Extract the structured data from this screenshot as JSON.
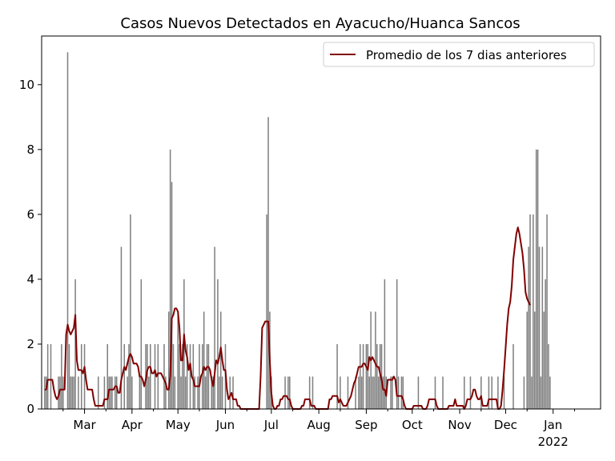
{
  "chart_data": {
    "type": "bar",
    "title": "Casos Nuevos Detectados en Ayacucho/Huanca Sancos",
    "xlabel": "",
    "ylabel": "",
    "ylim": [
      0,
      11.5
    ],
    "x_range": [
      "2021-02-01",
      "2022-02-01"
    ],
    "y_ticks": [
      "0",
      "2",
      "4",
      "6",
      "8",
      "10"
    ],
    "x_ticks": [
      {
        "date": "2021-03-01",
        "label": "Mar"
      },
      {
        "date": "2021-04-01",
        "label": "Apr"
      },
      {
        "date": "2021-05-01",
        "label": "May"
      },
      {
        "date": "2021-06-01",
        "label": "Jun"
      },
      {
        "date": "2021-07-01",
        "label": "Jul"
      },
      {
        "date": "2021-08-01",
        "label": "Aug"
      },
      {
        "date": "2021-09-01",
        "label": "Sep"
      },
      {
        "date": "2021-10-01",
        "label": "Oct"
      },
      {
        "date": "2021-11-01",
        "label": "Nov"
      },
      {
        "date": "2021-12-01",
        "label": "Dec"
      },
      {
        "date": "2022-01-01",
        "label": "Jan",
        "sublabel": "2022"
      }
    ],
    "bar_color": "#808080",
    "line_color": "#800000",
    "legend": {
      "placement": "top-right",
      "entries": [
        "Promedio de los 7 dias anteriores"
      ]
    },
    "series": [
      {
        "kind": "bar",
        "start_date": "2021-02-03",
        "values": [
          1,
          1,
          2,
          0,
          2,
          0,
          0,
          0,
          0,
          1,
          1,
          2,
          1,
          0,
          0,
          11,
          2,
          1,
          1,
          1,
          4,
          0,
          1,
          0,
          2,
          0,
          2,
          0,
          0,
          0,
          0,
          0,
          0,
          0,
          0,
          1,
          0,
          0,
          0,
          1,
          0,
          2,
          1,
          1,
          1,
          0,
          1,
          1,
          0,
          0,
          5,
          0,
          2,
          0,
          1,
          2,
          6,
          1,
          0,
          0,
          0,
          0,
          1,
          4,
          0,
          0,
          2,
          2,
          1,
          2,
          0,
          0,
          2,
          0,
          2,
          0,
          0,
          0,
          2,
          1,
          0,
          3,
          8,
          7,
          2,
          1,
          0,
          3,
          2,
          1,
          2,
          4,
          1,
          2,
          0,
          2,
          0,
          2,
          1,
          0,
          1,
          2,
          0,
          2,
          3,
          1,
          2,
          2,
          0,
          1,
          1,
          5,
          0,
          4,
          1,
          3,
          1,
          0,
          2,
          0,
          0,
          1,
          0,
          1,
          0,
          0,
          0,
          0,
          0,
          0,
          0,
          0,
          0,
          0,
          0,
          0,
          0,
          0,
          0,
          0,
          0,
          0,
          0,
          0,
          0,
          6,
          9,
          3,
          1,
          0,
          0,
          0,
          0,
          0,
          0,
          0,
          0,
          1,
          0,
          1,
          1,
          0,
          0,
          0,
          0,
          0,
          0,
          0,
          0,
          0,
          0,
          0,
          0,
          1,
          0,
          1,
          0,
          0,
          0,
          0,
          0,
          0,
          0,
          0,
          0,
          0,
          0,
          0,
          0,
          0,
          0,
          2,
          0,
          1,
          0,
          0,
          0,
          0,
          1,
          0,
          0,
          0,
          0,
          1,
          0,
          1,
          2,
          1,
          2,
          0,
          2,
          2,
          1,
          3,
          1,
          1,
          3,
          2,
          1,
          2,
          2,
          1,
          4,
          1,
          0,
          0,
          1,
          1,
          0,
          0,
          4,
          1,
          0,
          1,
          1,
          0,
          0,
          0,
          0,
          0,
          0,
          0,
          0,
          0,
          1,
          0,
          0,
          0,
          0,
          0,
          0,
          0,
          0,
          0,
          0,
          1,
          0,
          0,
          0,
          0,
          1,
          0,
          0,
          0,
          0,
          0,
          0,
          0,
          0,
          0,
          0,
          0,
          0,
          0,
          1,
          0,
          0,
          0,
          1,
          0,
          0,
          0,
          0,
          0,
          0,
          1,
          0,
          0,
          0,
          0,
          1,
          0,
          1,
          0,
          0,
          0,
          1,
          0,
          0,
          0,
          1,
          0,
          0,
          0,
          0,
          0,
          2,
          0,
          0,
          0,
          0,
          0,
          0,
          1,
          0,
          3,
          5,
          6,
          1,
          6,
          3,
          8,
          8,
          5,
          1,
          5,
          3,
          4,
          6,
          2,
          1
        ],
        "line_values": [
          0.6,
          0.6,
          0.9,
          0.9,
          0.9,
          0.9,
          0.6,
          0.4,
          0.3,
          0.4,
          0.6,
          0.6,
          0.6,
          0.6,
          2.3,
          2.6,
          2.4,
          2.3,
          2.4,
          2.5,
          2.9,
          1.5,
          1.2,
          1.2,
          1.2,
          1.1,
          1.3,
          0.9,
          0.6,
          0.6,
          0.6,
          0.6,
          0.3,
          0.1,
          0.1,
          0.1,
          0.1,
          0.1,
          0.1,
          0.3,
          0.3,
          0.3,
          0.6,
          0.6,
          0.6,
          0.6,
          0.7,
          0.7,
          0.5,
          0.5,
          0.9,
          1.1,
          1.3,
          1.2,
          1.4,
          1.6,
          1.7,
          1.6,
          1.4,
          1.4,
          1.4,
          1.3,
          1.0,
          1.0,
          0.9,
          0.7,
          0.9,
          1.2,
          1.3,
          1.3,
          1.1,
          1.1,
          1.2,
          1.0,
          1.1,
          1.1,
          1.1,
          1.0,
          0.9,
          0.8,
          0.6,
          0.6,
          1.0,
          2.8,
          2.9,
          3.1,
          3.1,
          3.0,
          2.5,
          1.5,
          1.5,
          2.3,
          1.8,
          1.6,
          1.2,
          1.4,
          1.0,
          0.9,
          0.7,
          0.7,
          0.7,
          0.7,
          1.0,
          1.1,
          1.3,
          1.2,
          1.3,
          1.3,
          1.2,
          0.9,
          0.7,
          1.1,
          1.5,
          1.4,
          1.6,
          1.9,
          1.5,
          1.2,
          1.2,
          0.6,
          0.3,
          0.4,
          0.5,
          0.3,
          0.3,
          0.3,
          0.1,
          0.1,
          0.0,
          0.0,
          0.0,
          0.0,
          0.0,
          0.0,
          0.0,
          0.0,
          0.0,
          0.0,
          0.0,
          0.0,
          0.0,
          1.0,
          2.5,
          2.6,
          2.7,
          2.7,
          2.7,
          1.5,
          0.5,
          0.1,
          0.0,
          0.0,
          0.1,
          0.1,
          0.3,
          0.3,
          0.4,
          0.4,
          0.4,
          0.3,
          0.3,
          0.1,
          0.0,
          0.0,
          0.0,
          0.0,
          0.0,
          0.0,
          0.1,
          0.1,
          0.3,
          0.3,
          0.3,
          0.3,
          0.1,
          0.1,
          0.1,
          0.0,
          0.0,
          0.0,
          0.0,
          0.0,
          0.0,
          0.0,
          0.0,
          0.0,
          0.3,
          0.3,
          0.4,
          0.4,
          0.4,
          0.4,
          0.2,
          0.3,
          0.2,
          0.1,
          0.1,
          0.1,
          0.2,
          0.3,
          0.4,
          0.6,
          0.8,
          0.9,
          1.1,
          1.3,
          1.3,
          1.3,
          1.4,
          1.4,
          1.3,
          1.2,
          1.6,
          1.5,
          1.6,
          1.5,
          1.4,
          1.3,
          1.3,
          1.1,
          0.9,
          0.6,
          0.6,
          0.4,
          0.9,
          0.9,
          0.9,
          0.9,
          1.0,
          0.9,
          0.4,
          0.4,
          0.4,
          0.4,
          0.3,
          0.1,
          0.0,
          0.0,
          0.0,
          0.0,
          0.0,
          0.1,
          0.1,
          0.1,
          0.1,
          0.1,
          0.1,
          0.0,
          0.0,
          0.0,
          0.1,
          0.3,
          0.3,
          0.3,
          0.3,
          0.3,
          0.1,
          0.0,
          0.0,
          0.0,
          0.0,
          0.0,
          0.0,
          0.0,
          0.1,
          0.1,
          0.1,
          0.1,
          0.3,
          0.1,
          0.1,
          0.1,
          0.1,
          0.1,
          0.0,
          0.1,
          0.3,
          0.3,
          0.3,
          0.4,
          0.6,
          0.6,
          0.4,
          0.3,
          0.3,
          0.4,
          0.1,
          0.1,
          0.1,
          0.1,
          0.3,
          0.3,
          0.3,
          0.3,
          0.3,
          0.3,
          0.0,
          0.0,
          0.1,
          0.6,
          1.2,
          1.9,
          2.6,
          3.1,
          3.3,
          3.8,
          4.6,
          5.0,
          5.4,
          5.6,
          5.4,
          5.1,
          4.8,
          4.3,
          3.6,
          3.4,
          3.3,
          3.2
        ]
      }
    ]
  }
}
